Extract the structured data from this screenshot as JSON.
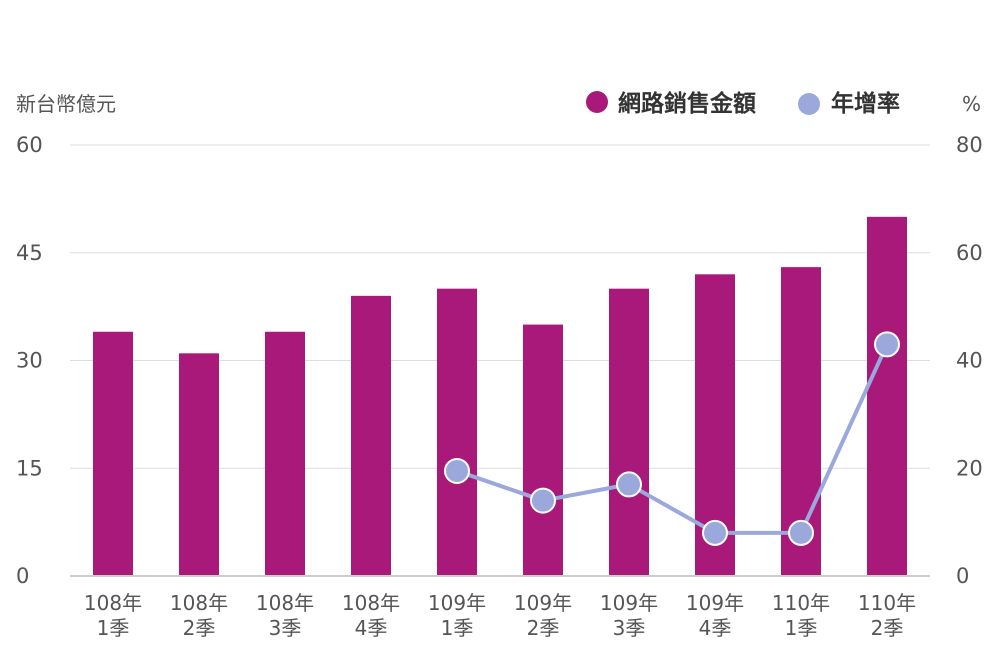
{
  "chart_data": {
    "type": "bar",
    "categories": [
      [
        "108年",
        "1季"
      ],
      [
        "108年",
        "2季"
      ],
      [
        "108年",
        "3季"
      ],
      [
        "108年",
        "4季"
      ],
      [
        "109年",
        "1季"
      ],
      [
        "109年",
        "2季"
      ],
      [
        "109年",
        "3季"
      ],
      [
        "109年",
        "4季"
      ],
      [
        "110年",
        "1季"
      ],
      [
        "110年",
        "2季"
      ]
    ],
    "series": [
      {
        "name": "網路銷售金額",
        "type": "bar",
        "axis": "left",
        "color": "#a8197a",
        "values": [
          34,
          31,
          34,
          39,
          40,
          35,
          40,
          42,
          43,
          50
        ]
      },
      {
        "name": "年增率",
        "type": "line",
        "axis": "right",
        "color": "#9aa8dc",
        "values": [
          null,
          null,
          null,
          null,
          19.5,
          14,
          17,
          8,
          8,
          43
        ]
      }
    ],
    "left_axis": {
      "label": "新台幣億元",
      "ylim": [
        0,
        60
      ],
      "ticks": [
        0,
        15,
        30,
        45,
        60
      ]
    },
    "right_axis": {
      "label": "%",
      "ylim": [
        0,
        80
      ],
      "ticks": [
        0,
        20,
        40,
        60,
        80
      ]
    },
    "legend": {
      "placement": "top-right"
    },
    "grid": true
  }
}
